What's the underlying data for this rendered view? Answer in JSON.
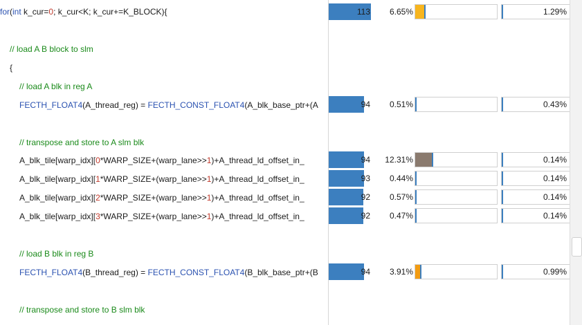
{
  "code": {
    "l0": {
      "kw": "for",
      "a": "(",
      "b": "int",
      "c": " k_cur=",
      "d": "0",
      "e": "; k_cur<K; k_cur+=K_BLOCK){"
    },
    "l1": {
      "comment": "// load A B block to slm"
    },
    "l2": {
      "text": "{"
    },
    "l3": {
      "comment": "// load A blk in reg A"
    },
    "l4": {
      "macro": "FECTH_FLOAT4",
      "rest": "(A_thread_reg) = ",
      "macro2": "FECTH_CONST_FLOAT4",
      "rest2": "(A_blk_base_ptr+(A"
    },
    "l5": {
      "comment": "// transpose and store to A slm blk"
    },
    "l6": {
      "pre": "A_blk_tile[warp_idx][",
      "n1": "0",
      "mid": "*WARP_SIZE+(warp_lane>>",
      "n2": "1",
      "post": ")+A_thread_ld_offset_in_"
    },
    "l7": {
      "pre": "A_blk_tile[warp_idx][",
      "n1": "1",
      "mid": "*WARP_SIZE+(warp_lane>>",
      "n2": "1",
      "post": ")+A_thread_ld_offset_in_"
    },
    "l8": {
      "pre": "A_blk_tile[warp_idx][",
      "n1": "2",
      "mid": "*WARP_SIZE+(warp_lane>>",
      "n2": "1",
      "post": ")+A_thread_ld_offset_in_"
    },
    "l9": {
      "pre": "A_blk_tile[warp_idx][",
      "n1": "3",
      "mid": "*WARP_SIZE+(warp_lane>>",
      "n2": "1",
      "post": ")+A_thread_ld_offset_in_"
    },
    "l10": {
      "comment": "// load B blk in reg B"
    },
    "l11": {
      "macro": "FECTH_FLOAT4",
      "rest": "(B_thread_reg) = ",
      "macro2": "FECTH_CONST_FLOAT4",
      "rest2": "(B_blk_base_ptr+(B"
    },
    "l12": {
      "comment": "// transpose and store to B slm blk"
    }
  },
  "metrics": [
    {
      "bar_value": "113",
      "bar_fraction": 0.96,
      "pct1": "6.65%",
      "seg1_color": "#f7b51e",
      "seg1_fraction": 0.11,
      "pct2": "1.29%"
    },
    {
      "bar_value": "94",
      "bar_fraction": 0.8,
      "pct1": "0.51%",
      "seg1_color": "",
      "seg1_fraction": 0.0,
      "pct2": "0.43%"
    },
    {
      "bar_value": "94",
      "bar_fraction": 0.8,
      "pct1": "12.31%",
      "seg1_color": "#8a7a6e",
      "seg1_fraction": 0.2,
      "pct2": "0.14%"
    },
    {
      "bar_value": "93",
      "bar_fraction": 0.79,
      "pct1": "0.44%",
      "seg1_color": "",
      "seg1_fraction": 0.0,
      "pct2": "0.14%"
    },
    {
      "bar_value": "92",
      "bar_fraction": 0.78,
      "pct1": "0.57%",
      "seg1_color": "",
      "seg1_fraction": 0.0,
      "pct2": "0.14%"
    },
    {
      "bar_value": "92",
      "bar_fraction": 0.78,
      "pct1": "0.47%",
      "seg1_color": "",
      "seg1_fraction": 0.0,
      "pct2": "0.14%"
    },
    {
      "bar_value": "94",
      "bar_fraction": 0.8,
      "pct1": "3.91%",
      "seg1_color": "#f39c12",
      "seg1_fraction": 0.06,
      "pct2": "0.99%"
    }
  ],
  "colors": {
    "bar": "#3c7fbf",
    "keyword": "#2a51b0",
    "number": "#c0392b",
    "comment": "#1a8a1a"
  }
}
